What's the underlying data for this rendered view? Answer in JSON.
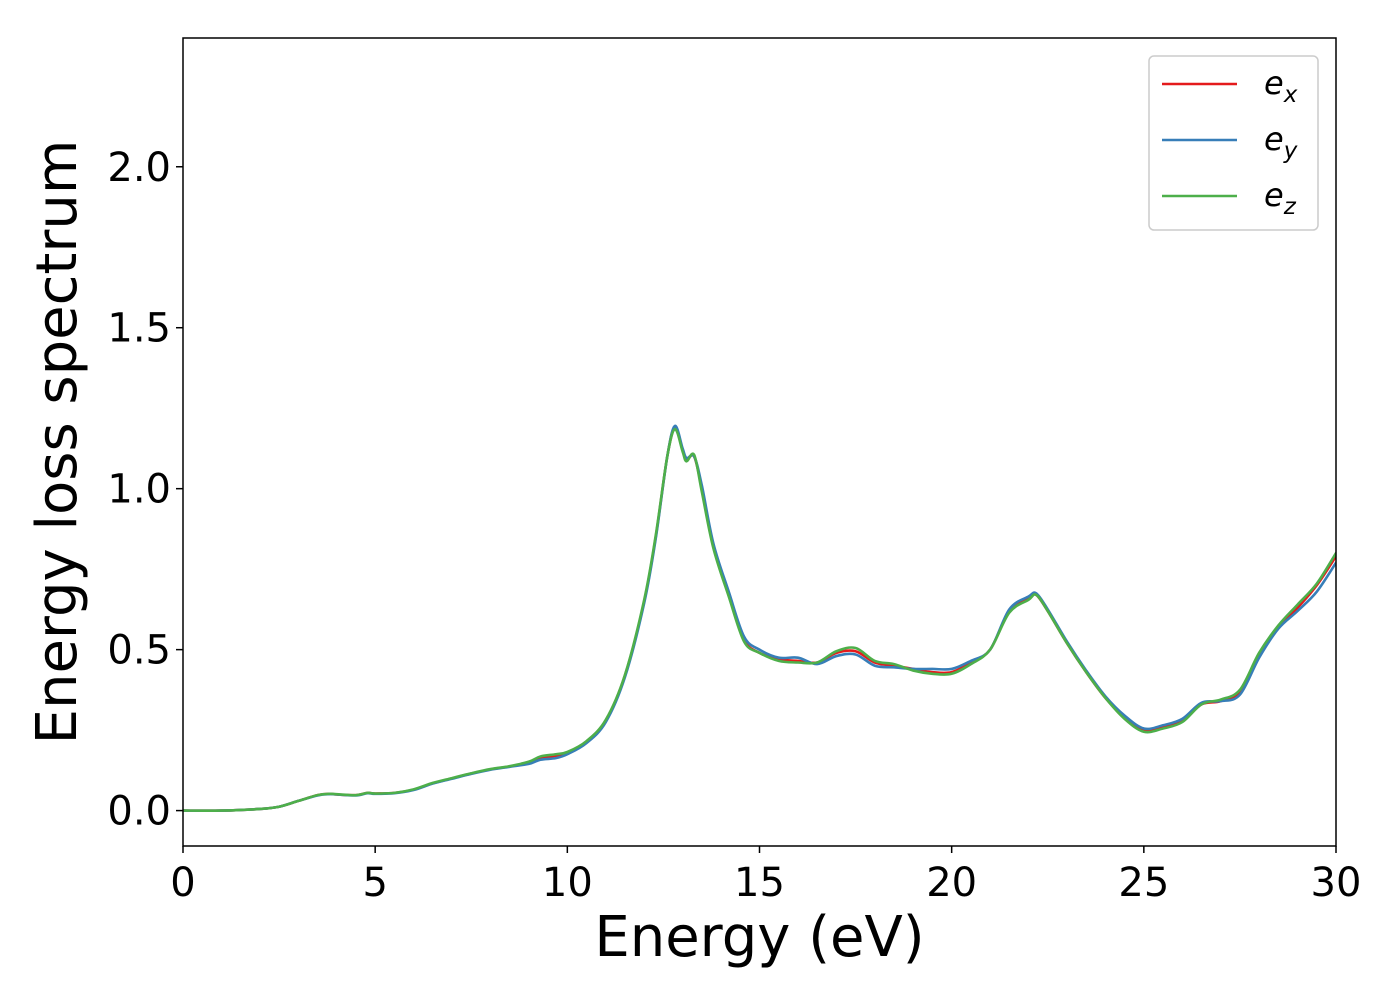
{
  "chart_data": {
    "type": "line",
    "title": "",
    "xlabel": "Energy (eV)",
    "ylabel": "Energy loss spectrum",
    "xlim": [
      0,
      30
    ],
    "ylim": [
      -0.11,
      2.4
    ],
    "xticks": [
      0,
      5,
      10,
      15,
      20,
      25,
      30
    ],
    "xtick_labels": [
      "0",
      "5",
      "10",
      "15",
      "20",
      "25",
      "30"
    ],
    "yticks": [
      0.0,
      0.5,
      1.0,
      1.5,
      2.0
    ],
    "ytick_labels": [
      "0.0",
      "0.5",
      "1.0",
      "1.5",
      "2.0"
    ],
    "grid": false,
    "legend_position": "top-right",
    "x": [
      0,
      1,
      2,
      2.5,
      3,
      3.5,
      3.8,
      4,
      4.5,
      4.8,
      5,
      5.5,
      6,
      6.5,
      7,
      7.5,
      8,
      8.5,
      9,
      9.3,
      9.7,
      10,
      10.5,
      11,
      11.5,
      12,
      12.3,
      12.6,
      12.8,
      13,
      13.1,
      13.3,
      13.5,
      13.8,
      14.2,
      14.6,
      15,
      15.5,
      16,
      16.5,
      17,
      17.5,
      18,
      18.5,
      19,
      19.5,
      20,
      20.5,
      21,
      21.5,
      22,
      22.2,
      22.5,
      23,
      23.5,
      24,
      24.5,
      25,
      25.5,
      26,
      26.5,
      27,
      27.5,
      28,
      28.5,
      29,
      29.5,
      30
    ],
    "series": [
      {
        "name": "e_x",
        "label_base": "e",
        "label_sub": "x",
        "color": "#e41a1c",
        "values": [
          0.0,
          0.0,
          0.005,
          0.012,
          0.03,
          0.048,
          0.052,
          0.05,
          0.048,
          0.055,
          0.053,
          0.055,
          0.065,
          0.085,
          0.1,
          0.115,
          0.128,
          0.137,
          0.15,
          0.165,
          0.17,
          0.18,
          0.215,
          0.28,
          0.42,
          0.65,
          0.85,
          1.1,
          1.19,
          1.12,
          1.09,
          1.1,
          1.0,
          0.82,
          0.67,
          0.53,
          0.49,
          0.47,
          0.465,
          0.46,
          0.49,
          0.495,
          0.46,
          0.45,
          0.44,
          0.43,
          0.43,
          0.46,
          0.5,
          0.62,
          0.66,
          0.67,
          0.62,
          0.52,
          0.43,
          0.35,
          0.29,
          0.25,
          0.26,
          0.28,
          0.33,
          0.34,
          0.37,
          0.48,
          0.57,
          0.63,
          0.7,
          0.79
        ]
      },
      {
        "name": "e_y",
        "label_base": "e",
        "label_sub": "y",
        "color": "#377eb8",
        "values": [
          0.0,
          0.0,
          0.005,
          0.012,
          0.03,
          0.047,
          0.051,
          0.05,
          0.047,
          0.054,
          0.052,
          0.054,
          0.064,
          0.084,
          0.099,
          0.114,
          0.127,
          0.136,
          0.145,
          0.158,
          0.163,
          0.175,
          0.21,
          0.275,
          0.415,
          0.645,
          0.845,
          1.1,
          1.195,
          1.125,
          1.095,
          1.1,
          1.01,
          0.83,
          0.68,
          0.54,
          0.5,
          0.475,
          0.475,
          0.455,
          0.48,
          0.485,
          0.45,
          0.445,
          0.44,
          0.44,
          0.44,
          0.465,
          0.5,
          0.625,
          0.665,
          0.675,
          0.625,
          0.525,
          0.435,
          0.355,
          0.295,
          0.255,
          0.265,
          0.285,
          0.335,
          0.34,
          0.36,
          0.475,
          0.565,
          0.62,
          0.68,
          0.77
        ]
      },
      {
        "name": "e_z",
        "label_base": "e",
        "label_sub": "z",
        "color": "#4daf4a",
        "values": [
          0.0,
          0.0,
          0.005,
          0.012,
          0.03,
          0.048,
          0.052,
          0.051,
          0.048,
          0.055,
          0.053,
          0.055,
          0.066,
          0.086,
          0.101,
          0.116,
          0.129,
          0.138,
          0.152,
          0.168,
          0.175,
          0.182,
          0.216,
          0.282,
          0.422,
          0.655,
          0.855,
          1.1,
          1.185,
          1.115,
          1.085,
          1.105,
          0.99,
          0.815,
          0.665,
          0.525,
          0.49,
          0.465,
          0.46,
          0.46,
          0.495,
          0.505,
          0.465,
          0.455,
          0.435,
          0.425,
          0.425,
          0.455,
          0.5,
          0.615,
          0.655,
          0.67,
          0.62,
          0.52,
          0.43,
          0.35,
          0.285,
          0.245,
          0.255,
          0.275,
          0.33,
          0.345,
          0.375,
          0.49,
          0.575,
          0.64,
          0.705,
          0.8
        ]
      }
    ]
  }
}
